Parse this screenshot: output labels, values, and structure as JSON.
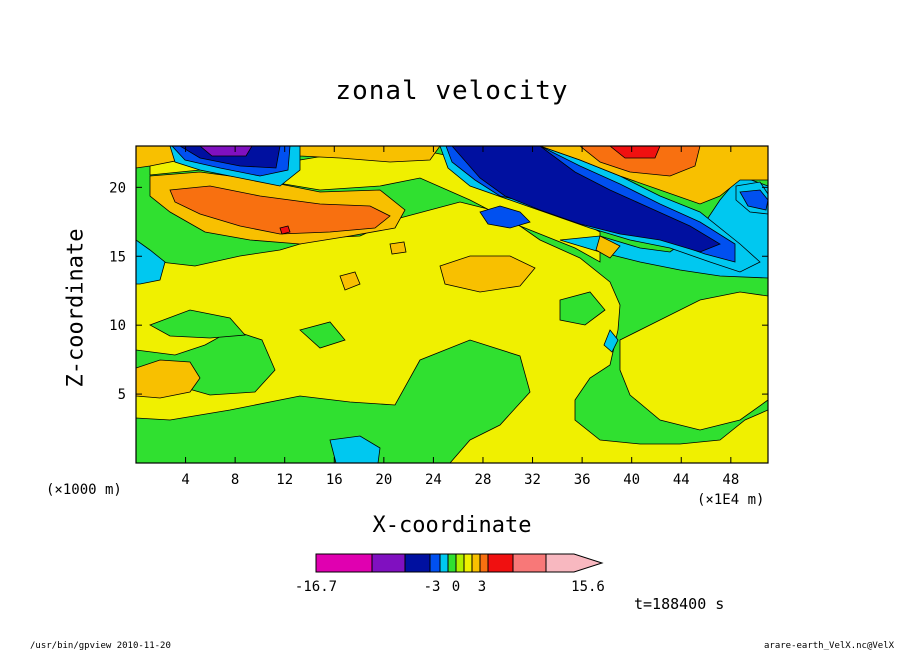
{
  "chart_data": {
    "type": "heatmap",
    "title": "zonal velocity",
    "xlabel": "X-coordinate",
    "ylabel": "Z-coordinate",
    "x_unit_note": "(×1000 m)",
    "x_scale_note": "(×1E4 m)",
    "xlim": [
      0,
      51
    ],
    "ylim": [
      0,
      23
    ],
    "x_ticks": [
      4,
      8,
      12,
      16,
      20,
      24,
      28,
      32,
      36,
      40,
      44,
      48
    ],
    "y_ticks": [
      5,
      10,
      15,
      20
    ],
    "colorbar": {
      "colors": [
        "#e000b0",
        "#8010c0",
        "#0010a0",
        "#0050f0",
        "#00c8f0",
        "#30e030",
        "#b0f000",
        "#f0f000",
        "#f8c000",
        "#f87010",
        "#f01010",
        "#f87878",
        "#f8b8c0"
      ],
      "labels": [
        "-16.7",
        "-3",
        "0",
        "3",
        "15.6"
      ]
    },
    "time_label": "t=188400 s"
  },
  "footer": {
    "left": "/usr/bin/gpview  2010-11-20",
    "right": "arare-earth_VelX.nc@VelX"
  }
}
